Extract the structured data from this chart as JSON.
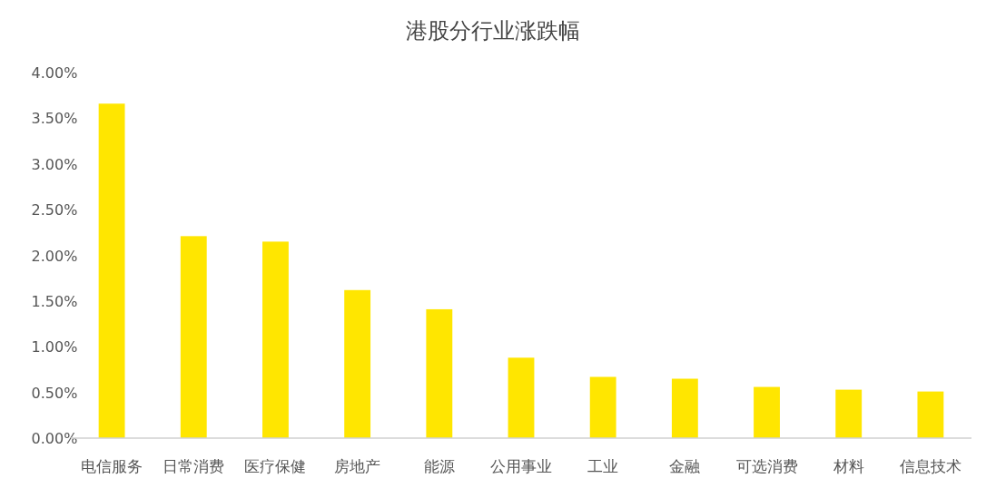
{
  "chart_data": {
    "type": "bar",
    "title": "港股分行业涨跌幅",
    "categories": [
      "电信服务",
      "日常消费",
      "医疗保健",
      "房地产",
      "能源",
      "公用事业",
      "工业",
      "金融",
      "可选消费",
      "材料",
      "信息技术"
    ],
    "values": [
      3.66,
      2.21,
      2.15,
      1.62,
      1.41,
      0.88,
      0.67,
      0.65,
      0.56,
      0.53,
      0.51
    ],
    "color": "#ffe600",
    "ylim": [
      0,
      4
    ],
    "yticks": [
      {
        "value": 0,
        "label": "0.00%"
      },
      {
        "value": 0.5,
        "label": "0.50%"
      },
      {
        "value": 1,
        "label": "1.00%"
      },
      {
        "value": 1.5,
        "label": "1.50%"
      },
      {
        "value": 2,
        "label": "2.00%"
      },
      {
        "value": 2.5,
        "label": "2.50%"
      },
      {
        "value": 3,
        "label": "3.00%"
      },
      {
        "value": 3.5,
        "label": "3.50%"
      },
      {
        "value": 4,
        "label": "4.00%"
      }
    ],
    "grid": false
  }
}
